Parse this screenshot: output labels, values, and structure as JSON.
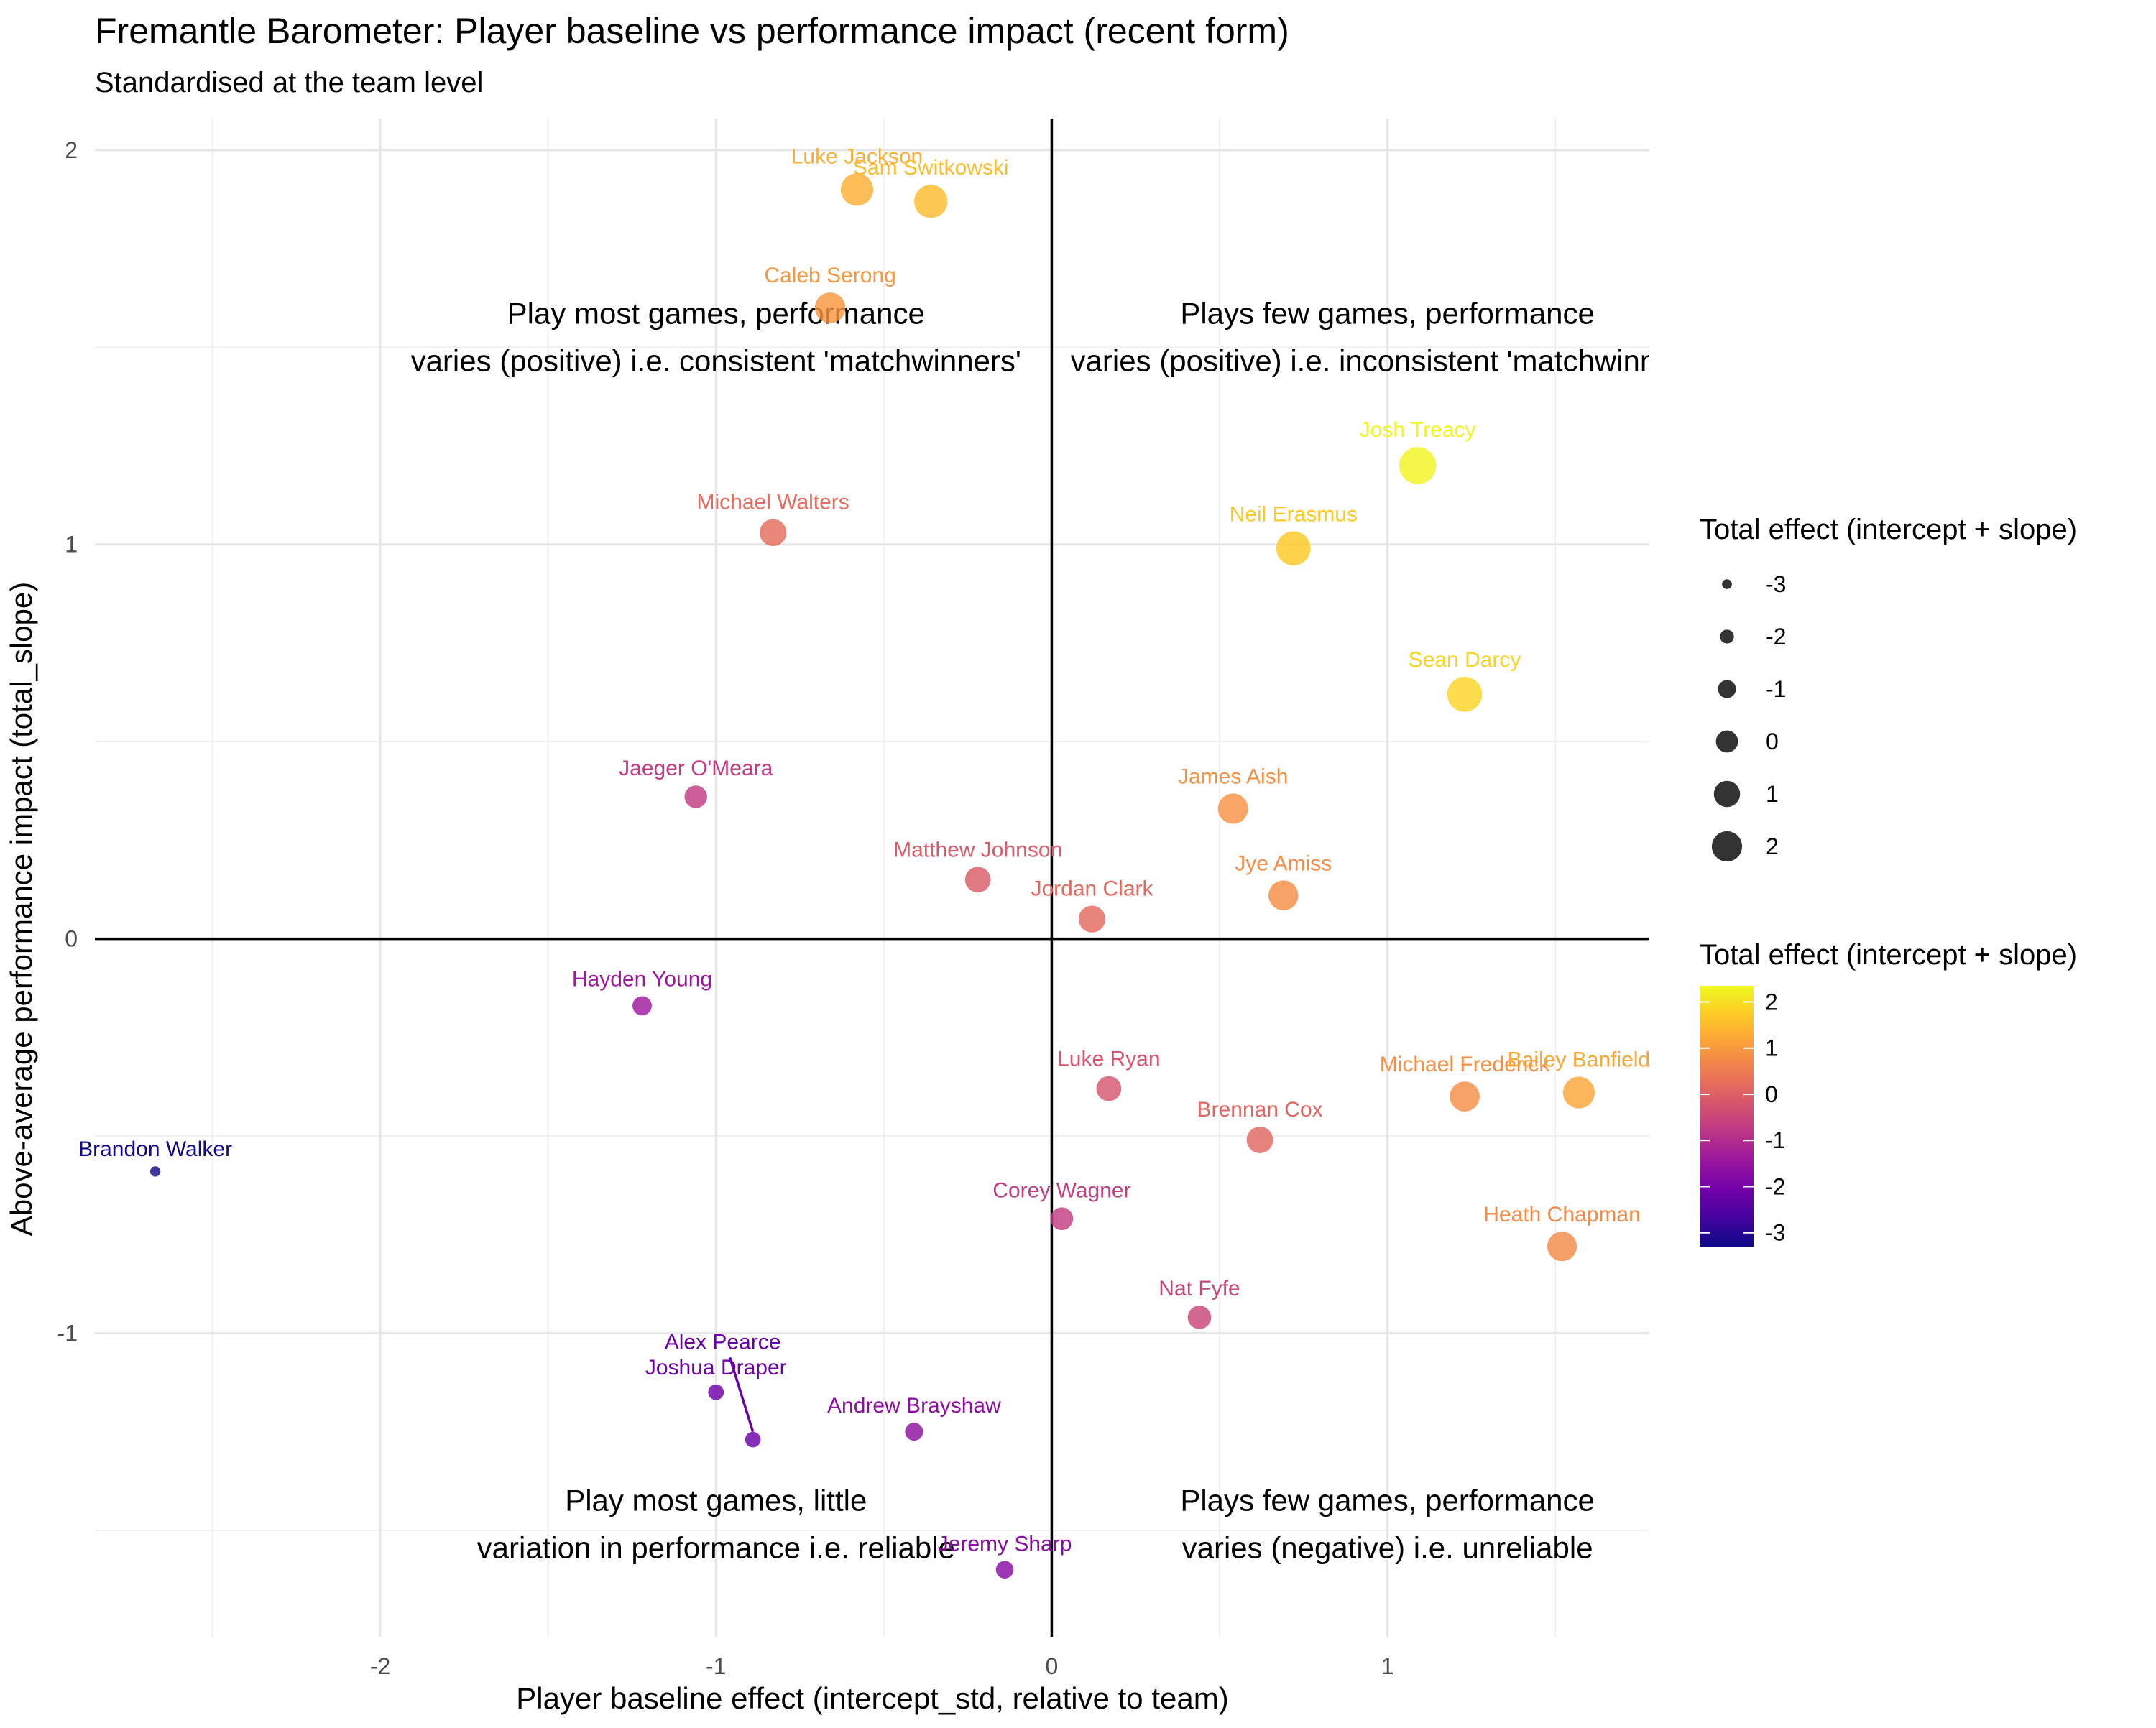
{
  "chart_data": {
    "type": "scatter",
    "title": "Fremantle Barometer: Player baseline vs performance impact (recent form)",
    "subtitle": "Standardised at the team level",
    "xlabel": "Player baseline effect (intercept_std, relative to team)",
    "ylabel": "Above-average performance impact (total_slope)",
    "xlim": [
      -2.85,
      1.78
    ],
    "ylim": [
      -1.77,
      2.08
    ],
    "x_ticks": [
      -2,
      -1,
      0,
      1
    ],
    "y_ticks": [
      -1,
      0,
      1,
      2
    ],
    "grid": true,
    "reference_lines": {
      "x": 0,
      "y": 0
    },
    "quadrant_labels": [
      {
        "lines": [
          "Play most games, performance",
          "varies (positive) i.e. consistent 'matchwinners'"
        ],
        "x": -1.0,
        "y": 1.56
      },
      {
        "lines": [
          "Plays few games, performance",
          "varies (positive) i.e. inconsistent 'matchwinners'"
        ],
        "x": 1.0,
        "y": 1.56
      },
      {
        "lines": [
          "Play most games, little",
          "variation in performance i.e. reliable"
        ],
        "x": -1.0,
        "y": -1.45
      },
      {
        "lines": [
          "Plays few games, performance",
          "varies (negative) i.e. unreliable"
        ],
        "x": 1.0,
        "y": -1.45
      }
    ],
    "points": [
      {
        "name": "Luke Jackson",
        "x": -0.58,
        "y": 1.9,
        "total_effect": 1.32
      },
      {
        "name": "Sam Switkowski",
        "x": -0.36,
        "y": 1.87,
        "total_effect": 1.51
      },
      {
        "name": "Caleb Serong",
        "x": -0.66,
        "y": 1.6,
        "total_effect": 0.94
      },
      {
        "name": "Josh Treacy",
        "x": 1.09,
        "y": 1.2,
        "total_effect": 2.29
      },
      {
        "name": "Michael Walters",
        "x": -0.83,
        "y": 1.03,
        "total_effect": 0.2
      },
      {
        "name": "Neil Erasmus",
        "x": 0.72,
        "y": 0.99,
        "total_effect": 1.71
      },
      {
        "name": "Sean Darcy",
        "x": 1.23,
        "y": 0.62,
        "total_effect": 1.85
      },
      {
        "name": "Jaeger O'Meara",
        "x": -1.06,
        "y": 0.36,
        "total_effect": -0.7
      },
      {
        "name": "James Aish",
        "x": 0.54,
        "y": 0.33,
        "total_effect": 0.87
      },
      {
        "name": "Matthew Johnson",
        "x": -0.22,
        "y": 0.15,
        "total_effect": -0.07
      },
      {
        "name": "Jye Amiss",
        "x": 0.69,
        "y": 0.11,
        "total_effect": 0.8
      },
      {
        "name": "Jordan Clark",
        "x": 0.12,
        "y": 0.05,
        "total_effect": 0.17
      },
      {
        "name": "Hayden Young",
        "x": -1.22,
        "y": -0.17,
        "total_effect": -1.39
      },
      {
        "name": "Luke Ryan",
        "x": 0.17,
        "y": -0.38,
        "total_effect": -0.21
      },
      {
        "name": "Michael Frederick",
        "x": 1.23,
        "y": -0.4,
        "total_effect": 0.83
      },
      {
        "name": "Heath Chapman",
        "x": 1.52,
        "y": -0.78,
        "total_effect": 0.74
      },
      {
        "name": "Bailey Banfield",
        "x": 1.57,
        "y": -0.39,
        "total_effect": 1.18
      },
      {
        "name": "Brennan Cox",
        "x": 0.62,
        "y": -0.51,
        "total_effect": 0.11
      },
      {
        "name": "Brandon Walker",
        "x": -2.67,
        "y": -0.59,
        "total_effect": -3.26
      },
      {
        "name": "Corey Wagner",
        "x": 0.03,
        "y": -0.71,
        "total_effect": -0.68
      },
      {
        "name": "Nat Fyfe",
        "x": 0.44,
        "y": -0.96,
        "total_effect": -0.52
      },
      {
        "name": "Alex Pearce",
        "x": -0.89,
        "y": -1.27,
        "total_effect": -2.16,
        "label_x": -0.98,
        "label_y": -1.04,
        "leader": true
      },
      {
        "name": "Joshua Draper",
        "x": -1.0,
        "y": -1.15,
        "total_effect": -2.15
      },
      {
        "name": "Andrew Brayshaw",
        "x": -0.41,
        "y": -1.25,
        "total_effect": -1.66
      },
      {
        "name": "Jeremy Sharp",
        "x": -0.14,
        "y": -1.6,
        "total_effect": -1.74
      }
    ],
    "legend_size": {
      "title": "Total effect (intercept + slope)",
      "breaks": [
        "-3",
        "-2",
        "-1",
        "0",
        "1",
        "2"
      ]
    },
    "legend_color": {
      "title": "Total effect (intercept + slope)",
      "breaks": [
        "2",
        "1",
        "0",
        "-1",
        "-2",
        "-3"
      ],
      "range": [
        -3.3,
        2.35
      ],
      "palette": [
        "#0d0887",
        "#46039f",
        "#7201a8",
        "#9c179e",
        "#bd3786",
        "#d8576b",
        "#ed7953",
        "#fb9f3a",
        "#fdca26",
        "#f0f921"
      ]
    }
  }
}
